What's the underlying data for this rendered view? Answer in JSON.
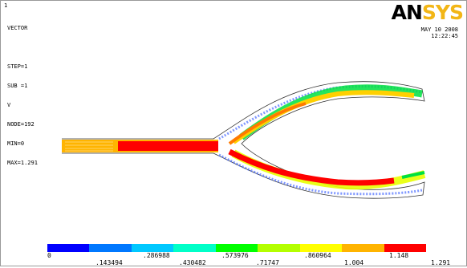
{
  "info": {
    "window_number": "1",
    "lines": [
      "VECTOR",
      "",
      "STEP=1",
      "SUB =1",
      "V",
      "NODE=192",
      "MIN=0",
      "MAX=1.291"
    ]
  },
  "date": "MAY 10 2008",
  "time": "12:22:45",
  "logo": {
    "part1": "AN",
    "part2": "SYS"
  },
  "legend": {
    "colors": [
      "#0000ff",
      "#0078ff",
      "#00c8ff",
      "#00ffc8",
      "#00ff00",
      "#b4ff00",
      "#ffff00",
      "#ffb400",
      "#ff0000"
    ],
    "upper_labels": [
      "0",
      ".286988",
      ".573976",
      ".860964",
      "1.148"
    ],
    "lower_labels": [
      ".143494",
      ".430482",
      ".71747",
      "1.004",
      "1.291"
    ]
  }
}
